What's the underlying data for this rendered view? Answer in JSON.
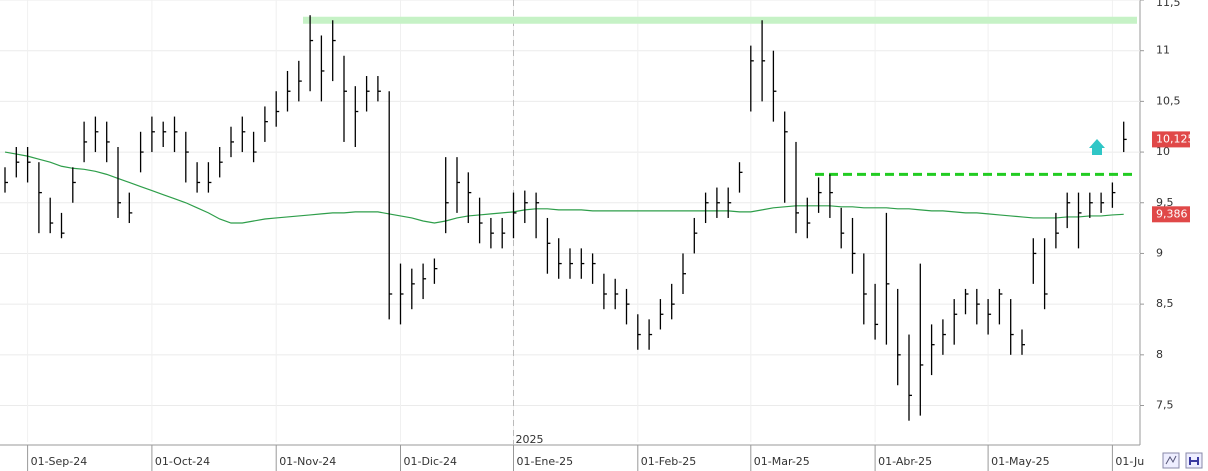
{
  "chart_data": {
    "type": "ohlc",
    "categories": [
      null,
      null,
      "01-Sep-24",
      null,
      null,
      null,
      null,
      null,
      null,
      null,
      null,
      null,
      null,
      "01-Oct-24",
      null,
      null,
      null,
      null,
      null,
      null,
      null,
      null,
      null,
      null,
      "01-Nov-24",
      null,
      null,
      null,
      null,
      null,
      null,
      null,
      null,
      null,
      null,
      "01-Dic-24",
      null,
      null,
      null,
      null,
      null,
      null,
      null,
      null,
      null,
      "01-Ene-25",
      null,
      null,
      null,
      null,
      null,
      null,
      null,
      null,
      null,
      null,
      "01-Feb-25",
      null,
      null,
      null,
      null,
      null,
      null,
      null,
      null,
      null,
      "01-Mar-25",
      null,
      null,
      null,
      null,
      null,
      null,
      null,
      null,
      null,
      null,
      "01-Abr-25",
      null,
      null,
      null,
      null,
      null,
      null,
      null,
      null,
      null,
      "01-May-25",
      null,
      null,
      null,
      null,
      null,
      null,
      null,
      null,
      null,
      null,
      "01-Ju",
      null
    ],
    "high": [
      9.85,
      10.05,
      10.05,
      9.9,
      9.55,
      9.4,
      9.85,
      10.3,
      10.35,
      10.3,
      10.05,
      9.6,
      10.2,
      10.35,
      10.3,
      10.35,
      10.2,
      9.9,
      9.9,
      10.05,
      10.25,
      10.35,
      10.2,
      10.45,
      10.6,
      10.8,
      10.9,
      11.35,
      11.15,
      11.3,
      10.95,
      10.65,
      10.75,
      10.75,
      10.6,
      8.9,
      8.85,
      8.9,
      8.95,
      9.95,
      9.95,
      9.8,
      9.55,
      9.35,
      9.35,
      9.6,
      9.62,
      9.6,
      9.35,
      9.15,
      9.05,
      9.05,
      9.0,
      8.8,
      8.75,
      8.65,
      8.4,
      8.35,
      8.55,
      8.7,
      9.0,
      9.35,
      9.6,
      9.65,
      9.65,
      9.9,
      11.05,
      11.3,
      11.0,
      10.4,
      10.1,
      9.55,
      9.75,
      9.78,
      9.45,
      9.35,
      9.0,
      8.7,
      9.4,
      8.65,
      8.2,
      8.9,
      8.3,
      8.35,
      8.55,
      8.65,
      8.65,
      8.55,
      8.65,
      8.55,
      8.25,
      9.15,
      9.15,
      9.4,
      9.6,
      9.6,
      9.6,
      9.6,
      9.7,
      10.3
    ],
    "low": [
      9.6,
      9.75,
      9.7,
      9.2,
      9.2,
      9.15,
      9.5,
      9.9,
      10.0,
      9.9,
      9.35,
      9.3,
      9.8,
      10.0,
      10.05,
      10.0,
      9.7,
      9.6,
      9.6,
      9.75,
      9.95,
      10.0,
      9.9,
      10.1,
      10.25,
      10.4,
      10.5,
      10.6,
      10.5,
      10.7,
      10.1,
      10.05,
      10.4,
      10.5,
      8.35,
      8.3,
      8.45,
      8.55,
      8.7,
      9.2,
      9.4,
      9.3,
      9.1,
      9.05,
      9.05,
      9.15,
      9.3,
      9.15,
      8.8,
      8.75,
      8.75,
      8.75,
      8.7,
      8.45,
      8.45,
      8.3,
      8.05,
      8.05,
      8.25,
      8.35,
      8.6,
      9.0,
      9.3,
      9.35,
      9.35,
      9.6,
      10.4,
      10.5,
      10.3,
      9.5,
      9.2,
      9.15,
      9.4,
      9.35,
      9.05,
      8.8,
      8.3,
      8.15,
      8.1,
      7.7,
      7.35,
      7.4,
      7.8,
      8.0,
      8.1,
      8.4,
      8.3,
      8.2,
      8.3,
      8.0,
      8.0,
      8.7,
      8.45,
      9.05,
      9.25,
      9.05,
      9.35,
      9.4,
      9.45,
      10.0
    ],
    "close": [
      9.7,
      9.9,
      9.9,
      9.6,
      9.3,
      9.2,
      9.7,
      10.1,
      10.2,
      10.1,
      9.5,
      9.4,
      10.0,
      10.2,
      10.2,
      10.2,
      10.0,
      9.7,
      9.7,
      9.9,
      10.1,
      10.2,
      10.0,
      10.3,
      10.4,
      10.6,
      10.7,
      11.1,
      10.8,
      11.1,
      10.6,
      10.4,
      10.6,
      10.6,
      8.6,
      8.6,
      8.7,
      8.75,
      8.85,
      9.5,
      9.7,
      9.6,
      9.3,
      9.2,
      9.2,
      9.4,
      9.5,
      9.5,
      9.1,
      8.9,
      8.9,
      8.9,
      8.9,
      8.6,
      8.6,
      8.5,
      8.2,
      8.2,
      8.4,
      8.5,
      8.8,
      9.2,
      9.5,
      9.5,
      9.5,
      9.8,
      10.9,
      10.9,
      10.6,
      10.2,
      9.4,
      9.3,
      9.6,
      9.6,
      9.2,
      9.0,
      8.6,
      8.3,
      8.7,
      8.0,
      7.6,
      7.9,
      8.1,
      8.2,
      8.4,
      8.6,
      8.5,
      8.4,
      8.6,
      8.2,
      8.1,
      9.0,
      8.6,
      9.2,
      9.5,
      9.4,
      9.5,
      9.5,
      9.6,
      10.125
    ],
    "color": "#000000",
    "moving_average": {
      "color": "#2e9e4a",
      "values": [
        10.0,
        9.98,
        9.96,
        9.93,
        9.9,
        9.86,
        9.84,
        9.83,
        9.81,
        9.78,
        9.74,
        9.7,
        9.66,
        9.62,
        9.58,
        9.54,
        9.5,
        9.45,
        9.4,
        9.34,
        9.3,
        9.3,
        9.32,
        9.34,
        9.35,
        9.36,
        9.37,
        9.38,
        9.39,
        9.4,
        9.4,
        9.41,
        9.41,
        9.41,
        9.39,
        9.37,
        9.35,
        9.32,
        9.3,
        9.32,
        9.35,
        9.37,
        9.38,
        9.39,
        9.4,
        9.41,
        9.43,
        9.44,
        9.44,
        9.43,
        9.43,
        9.43,
        9.42,
        9.42,
        9.42,
        9.42,
        9.42,
        9.42,
        9.42,
        9.42,
        9.42,
        9.42,
        9.42,
        9.42,
        9.42,
        9.41,
        9.41,
        9.43,
        9.45,
        9.46,
        9.47,
        9.47,
        9.47,
        9.47,
        9.46,
        9.46,
        9.45,
        9.45,
        9.45,
        9.44,
        9.44,
        9.43,
        9.42,
        9.42,
        9.41,
        9.4,
        9.4,
        9.39,
        9.38,
        9.37,
        9.36,
        9.35,
        9.35,
        9.35,
        9.36,
        9.36,
        9.37,
        9.37,
        9.38,
        9.386
      ]
    },
    "levels": [
      {
        "value": 11.3,
        "color": "#c6f2c6",
        "style": "solid"
      },
      {
        "value": 9.78,
        "color": "#22cc22",
        "style": "dashed"
      }
    ],
    "price_labels": [
      {
        "value": 10.125,
        "label": "10,125",
        "color": "#e04848"
      },
      {
        "value": 9.386,
        "label": "9,386",
        "color": "#e04848"
      }
    ],
    "year_marker": "2025",
    "ylim": [
      7.14,
      11.5
    ],
    "yticks": [
      {
        "value": 7.5,
        "label": "7,5"
      },
      8,
      {
        "value": 8.5,
        "label": "8,5"
      },
      9,
      {
        "value": 9.5,
        "label": "9,5"
      },
      10,
      {
        "value": 10.5,
        "label": "10,5"
      },
      11,
      {
        "value": 11.5,
        "label": "11,5"
      }
    ],
    "grid": true
  }
}
